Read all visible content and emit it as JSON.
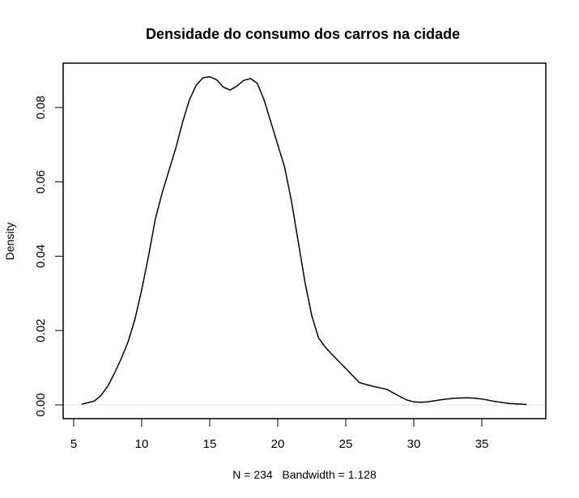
{
  "chart_data": {
    "type": "line",
    "title": "Densidade do consumo dos carros na cidade",
    "xlabel": "N = 234   Bandwidth = 1.128",
    "ylabel": "Density",
    "xlim": [
      4.5,
      39.5
    ],
    "ylim": [
      -0.0035,
      0.092
    ],
    "x_ticks": [
      5,
      10,
      15,
      20,
      25,
      30,
      35
    ],
    "x_tick_labels": [
      "5",
      "10",
      "15",
      "20",
      "25",
      "30",
      "35"
    ],
    "y_ticks": [
      0.0,
      0.02,
      0.04,
      0.06,
      0.08
    ],
    "y_tick_labels": [
      "0.00",
      "0.02",
      "0.04",
      "0.06",
      "0.08"
    ],
    "grid": false,
    "legend": null,
    "zero_line": true,
    "n": 234,
    "bandwidth": 1.128,
    "series": [
      {
        "name": "density",
        "color": "#000000",
        "x": [
          5.6,
          6.5,
          7.0,
          7.5,
          8.0,
          8.5,
          9.0,
          9.5,
          10.0,
          10.5,
          11.0,
          11.5,
          12.0,
          12.5,
          13.0,
          13.5,
          14.0,
          14.5,
          15.0,
          15.5,
          16.0,
          16.5,
          17.0,
          17.5,
          18.0,
          18.5,
          19.0,
          19.5,
          20.0,
          20.5,
          21.0,
          21.5,
          22.0,
          22.5,
          23.0,
          23.5,
          24.0,
          25.0,
          26.0,
          27.0,
          28.0,
          28.5,
          29.0,
          29.5,
          30.0,
          30.5,
          31.0,
          31.5,
          32.0,
          33.0,
          34.0,
          34.5,
          35.0,
          36.0,
          37.0,
          38.3
        ],
        "y": [
          0.0002,
          0.001,
          0.0025,
          0.005,
          0.0085,
          0.0125,
          0.017,
          0.023,
          0.031,
          0.04,
          0.05,
          0.057,
          0.063,
          0.069,
          0.076,
          0.082,
          0.086,
          0.088,
          0.0883,
          0.0875,
          0.0855,
          0.0847,
          0.0858,
          0.0873,
          0.0878,
          0.0865,
          0.082,
          0.076,
          0.07,
          0.064,
          0.055,
          0.044,
          0.033,
          0.024,
          0.018,
          0.0155,
          0.0135,
          0.0098,
          0.006,
          0.005,
          0.0042,
          0.0032,
          0.0022,
          0.0013,
          0.0008,
          0.0007,
          0.0008,
          0.0011,
          0.0014,
          0.0018,
          0.0019,
          0.0018,
          0.0016,
          0.0009,
          0.0004,
          0.0001
        ]
      }
    ]
  }
}
